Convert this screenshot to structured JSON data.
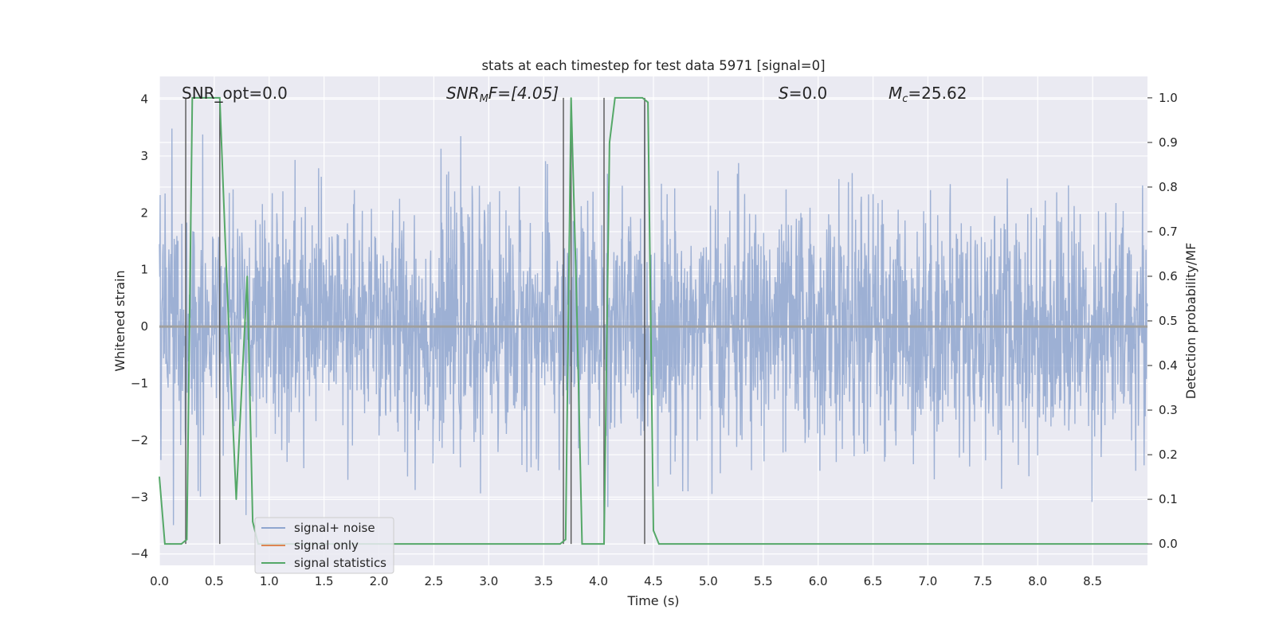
{
  "chart_data": {
    "type": "line",
    "title": "stats at each timestep for test data 5971 [signal=0]",
    "xlabel": "Time (s)",
    "ylabel": "Whitened strain",
    "ylabel_right": "Detection probability/MF",
    "xlim": [
      0.0,
      9.0
    ],
    "ylim": [
      -4.2,
      4.4
    ],
    "ylim_right": [
      -0.048,
      1.048
    ],
    "x_ticks": [
      "0.0",
      "0.5",
      "1.0",
      "1.5",
      "2.0",
      "2.5",
      "3.0",
      "3.5",
      "4.0",
      "4.5",
      "5.0",
      "5.5",
      "6.0",
      "6.5",
      "7.0",
      "7.5",
      "8.0",
      "8.5"
    ],
    "y_ticks": [
      "4",
      "3",
      "2",
      "1",
      "0",
      "−1",
      "−2",
      "−3",
      "−4"
    ],
    "y_ticks_right": [
      "1.0",
      "0.9",
      "0.8",
      "0.7",
      "0.6",
      "0.5",
      "0.4",
      "0.3",
      "0.2",
      "0.1",
      "0.0"
    ],
    "grid": true,
    "legend_position": "lower-left",
    "annotations": {
      "snr_opt": "SNR_opt=0.0",
      "snr_mf_name": "SNR",
      "snr_mf_sub": "M",
      "snr_mf_rest": "F=[4.05]",
      "s_name": "S",
      "s_rest": "=0.0",
      "mc_name": "M",
      "mc_sub": "c",
      "mc_rest": "=25.62"
    },
    "series": [
      {
        "name": "signal+ noise",
        "color": "#8fa6cf",
        "note": "whitened strain, noise only, roughly within ±3 with spikes to ±4"
      },
      {
        "name": "signal only",
        "color": "#dd8452",
        "values_constant": 0.0
      },
      {
        "name": "signal statistics",
        "color": "#55a868",
        "x": [
          0.0,
          0.05,
          0.1,
          0.2,
          0.25,
          0.3,
          0.35,
          0.4,
          0.45,
          0.5,
          0.55,
          0.6,
          0.65,
          0.7,
          0.75,
          0.8,
          0.85,
          0.9,
          3.6,
          3.65,
          3.7,
          3.75,
          3.8,
          3.85,
          4.05,
          4.1,
          4.15,
          4.2,
          4.35,
          4.4,
          4.45,
          4.5,
          4.55,
          9.0
        ],
        "values": [
          0.15,
          0.0,
          0.0,
          0.0,
          0.01,
          1.0,
          1.0,
          1.0,
          1.0,
          1.0,
          1.0,
          0.68,
          0.38,
          0.1,
          0.35,
          0.6,
          0.05,
          0.0,
          0.0,
          0.0,
          0.01,
          1.0,
          0.55,
          0.0,
          0.0,
          0.9,
          1.0,
          1.0,
          1.0,
          1.0,
          0.99,
          0.03,
          0.0,
          0.0
        ]
      }
    ],
    "marker_lines_x": [
      0.24,
      0.55,
      3.68,
      3.75,
      4.05,
      4.42
    ],
    "marker_lines_range": [
      0.0,
      1.0
    ]
  }
}
